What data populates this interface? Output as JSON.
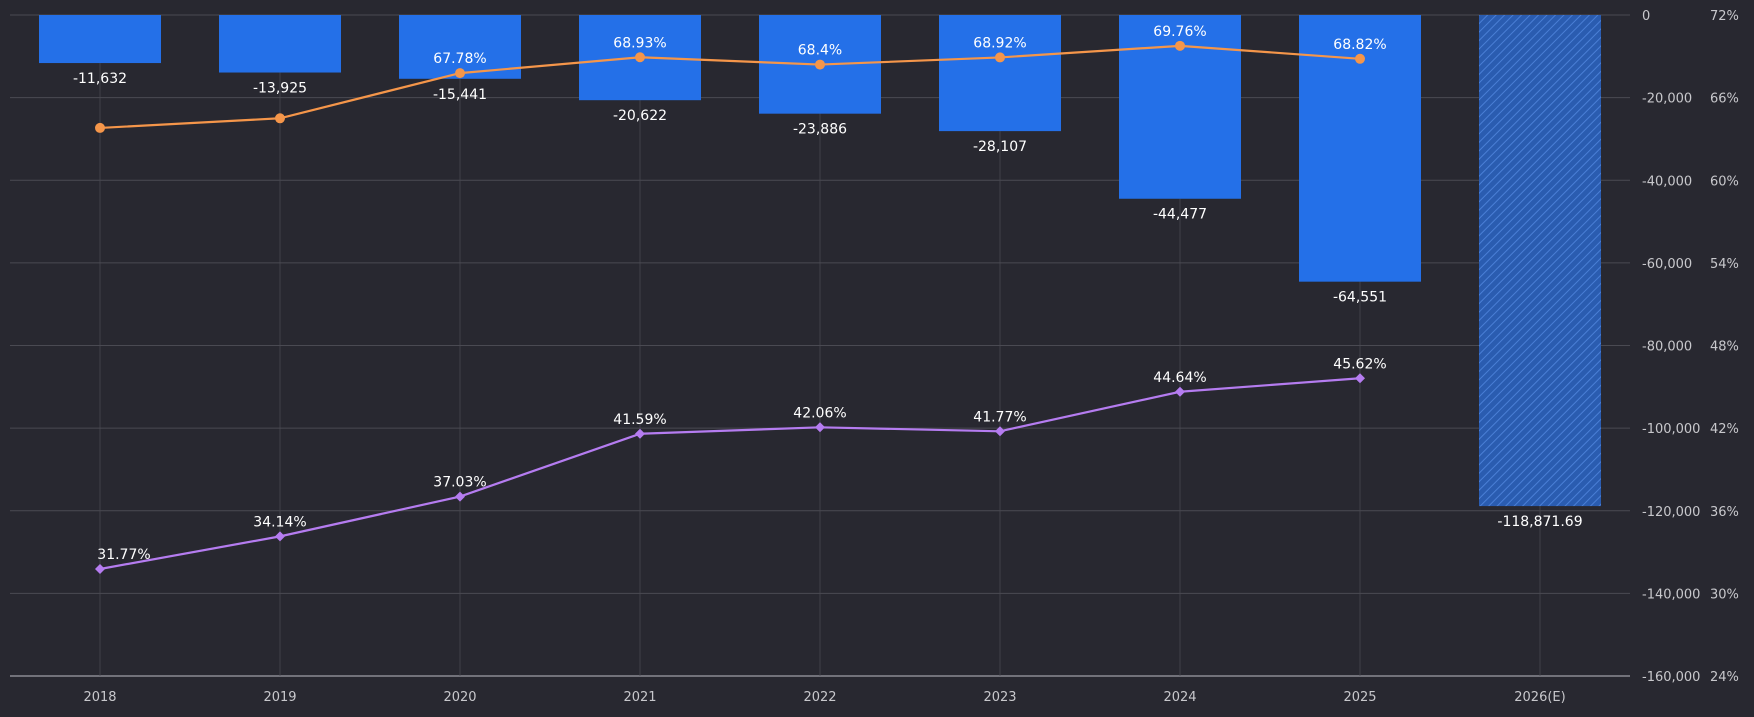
{
  "chart_data": {
    "type": "bar",
    "categories": [
      "2018",
      "2019",
      "2020",
      "2021",
      "2022",
      "2023",
      "2024",
      "2025",
      "2026(E)"
    ],
    "bars": {
      "values": [
        -11632,
        -13925,
        -15441,
        -20622,
        -23886,
        -28107,
        -44477,
        -64551,
        -118871.69
      ],
      "labels": [
        "-11,632",
        "-13,925",
        "-15,441",
        "-20,622",
        "-23,886",
        "-28,107",
        "-44,477",
        "-64,551",
        "-118,871.69"
      ],
      "estimated_index": 8
    },
    "lines": [
      {
        "values": [
          63.8,
          64.5,
          67.78,
          68.93,
          68.4,
          68.92,
          69.76,
          68.82
        ],
        "labels": [
          "",
          "",
          "67.78%",
          "68.93%",
          "68.4%",
          "68.92%",
          "69.76%",
          "68.82%"
        ],
        "color": "#f5964a",
        "marker": "circle"
      },
      {
        "values": [
          31.77,
          34.14,
          37.03,
          41.59,
          42.06,
          41.77,
          44.64,
          45.62
        ],
        "labels": [
          "31.77%",
          "34.14%",
          "37.03%",
          "41.59%",
          "42.06%",
          "41.77%",
          "44.64%",
          "45.62%"
        ],
        "color": "#b57cf0",
        "marker": "diamond"
      }
    ],
    "left_axis": {
      "range": [
        -160000,
        0
      ],
      "ticks": [
        0,
        -20000,
        -40000,
        -60000,
        -80000,
        -100000,
        -120000,
        -140000,
        -160000
      ],
      "tick_labels": [
        "0",
        "-20,000",
        "-40,000",
        "-60,000",
        "-80,000",
        "-100,000",
        "-120,000",
        "-140,000",
        "-160,000"
      ]
    },
    "right_axis": {
      "range": [
        24,
        72
      ],
      "ticks": [
        72,
        66,
        60,
        54,
        48,
        42,
        36,
        30,
        24
      ],
      "tick_labels": [
        "72%",
        "66%",
        "60%",
        "54%",
        "48%",
        "42%",
        "36%",
        "30%",
        "24%"
      ]
    },
    "grid": true,
    "colors": {
      "background": "#282830",
      "bar": "#2470e8",
      "estimated_bar": "#2a5cb0",
      "gridline": "#4a4a52",
      "text": "#ffffff",
      "tick_text": "#c8c8cc"
    }
  }
}
